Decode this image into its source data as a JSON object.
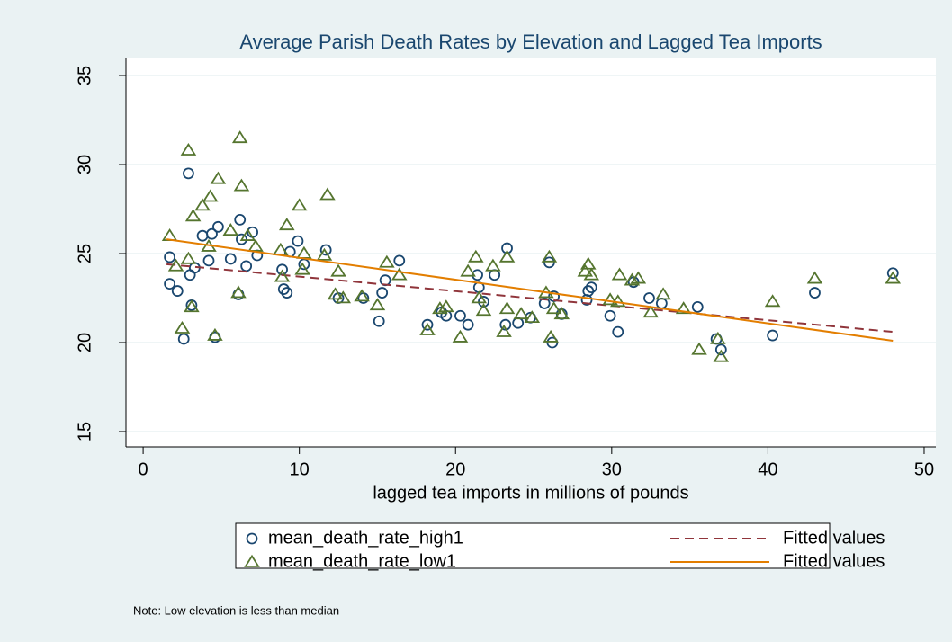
{
  "chart_data": {
    "type": "scatter",
    "title": "Average Parish Death Rates by Elevation and Lagged Tea Imports",
    "xlabel": "lagged tea imports in millions of pounds",
    "note": "Note: Low elevation is less than median",
    "xlim": [
      -1.1,
      50.75
    ],
    "ylim": [
      14.14,
      35.96
    ],
    "xticks": [
      0,
      10,
      20,
      30,
      40,
      50
    ],
    "yticks": [
      15,
      20,
      25,
      30,
      35
    ],
    "grid": true,
    "series": [
      {
        "name": "mean_death_rate_high1",
        "type": "scatter",
        "marker": "circle",
        "color": "#1a476f",
        "x": [
          1.7,
          1.7,
          2.2,
          2.6,
          2.9,
          3.0,
          3.1,
          3.3,
          3.8,
          4.2,
          4.4,
          4.6,
          4.8,
          5.6,
          6.1,
          6.2,
          6.3,
          6.6,
          7.0,
          7.3,
          8.9,
          9.0,
          9.2,
          9.4,
          9.9,
          10.3,
          11.7,
          12.5,
          14.1,
          15.1,
          15.3,
          15.5,
          16.4,
          18.2,
          19.1,
          19.4,
          20.3,
          20.8,
          21.4,
          21.5,
          21.8,
          22.5,
          23.2,
          23.3,
          24.0,
          24.8,
          25.7,
          26.0,
          26.2,
          26.3,
          26.8,
          28.4,
          28.5,
          28.7,
          29.9,
          30.4,
          31.4,
          32.4,
          33.2,
          35.5,
          36.7,
          37.0,
          40.3,
          43.0,
          48.0
        ],
        "values": [
          24.8,
          23.3,
          22.9,
          20.2,
          29.5,
          23.8,
          22.1,
          24.2,
          26.0,
          24.6,
          26.1,
          20.3,
          26.5,
          24.7,
          22.7,
          26.9,
          25.8,
          24.3,
          26.2,
          24.9,
          24.1,
          23.0,
          22.8,
          25.1,
          25.7,
          24.4,
          25.2,
          22.5,
          22.5,
          21.2,
          22.8,
          23.5,
          24.6,
          21.0,
          21.7,
          21.5,
          21.5,
          21.0,
          23.8,
          23.1,
          22.3,
          23.8,
          21.0,
          25.3,
          21.1,
          21.4,
          22.2,
          24.5,
          20.0,
          22.6,
          21.6,
          22.4,
          22.9,
          23.1,
          21.5,
          20.6,
          23.4,
          22.5,
          22.2,
          22.0,
          20.2,
          19.6,
          20.4,
          22.8,
          23.9
        ]
      },
      {
        "name": "Fitted values",
        "type": "line",
        "dashed": true,
        "color": "#90353b",
        "x": [
          1.5,
          48.0
        ],
        "values": [
          24.4,
          20.6
        ]
      },
      {
        "name": "mean_death_rate_low1",
        "type": "scatter",
        "marker": "triangle",
        "color": "#55752f",
        "x": [
          1.7,
          2.1,
          2.5,
          2.9,
          2.9,
          3.1,
          3.2,
          3.8,
          4.2,
          4.3,
          4.6,
          4.8,
          5.6,
          6.1,
          6.2,
          6.3,
          6.7,
          7.2,
          8.8,
          8.9,
          9.2,
          10.0,
          10.2,
          10.3,
          11.6,
          11.8,
          12.3,
          12.5,
          12.8,
          14.0,
          15.0,
          15.6,
          16.4,
          18.2,
          19.0,
          19.4,
          20.3,
          20.8,
          21.3,
          21.5,
          21.8,
          22.4,
          23.1,
          23.3,
          23.3,
          24.2,
          24.9,
          25.8,
          26.0,
          26.1,
          26.3,
          26.8,
          28.3,
          28.5,
          28.7,
          29.9,
          30.4,
          30.5,
          31.3,
          31.7,
          32.5,
          33.3,
          34.6,
          35.6,
          36.8,
          37.0,
          40.3,
          43.0,
          48.0
        ],
        "values": [
          26.0,
          24.3,
          20.8,
          30.8,
          24.7,
          22.0,
          27.1,
          27.7,
          25.4,
          28.2,
          20.4,
          29.2,
          26.3,
          22.8,
          31.5,
          28.8,
          26.0,
          25.4,
          25.2,
          23.7,
          26.6,
          27.7,
          24.1,
          25.0,
          24.9,
          28.3,
          22.7,
          24.0,
          22.5,
          22.6,
          22.1,
          24.5,
          23.8,
          20.7,
          21.9,
          22.0,
          20.3,
          24.0,
          24.8,
          22.5,
          21.8,
          24.3,
          20.6,
          24.8,
          21.9,
          21.6,
          21.4,
          22.8,
          24.8,
          20.3,
          21.9,
          21.6,
          24.0,
          24.4,
          23.8,
          22.4,
          22.3,
          23.8,
          23.5,
          23.6,
          21.7,
          22.7,
          21.9,
          19.6,
          20.2,
          19.2,
          22.3,
          23.6,
          23.6
        ]
      },
      {
        "name": "Fitted values",
        "type": "line",
        "dashed": false,
        "color": "#e37e00",
        "x": [
          1.5,
          48.0
        ],
        "values": [
          25.8,
          20.1
        ]
      }
    ]
  }
}
